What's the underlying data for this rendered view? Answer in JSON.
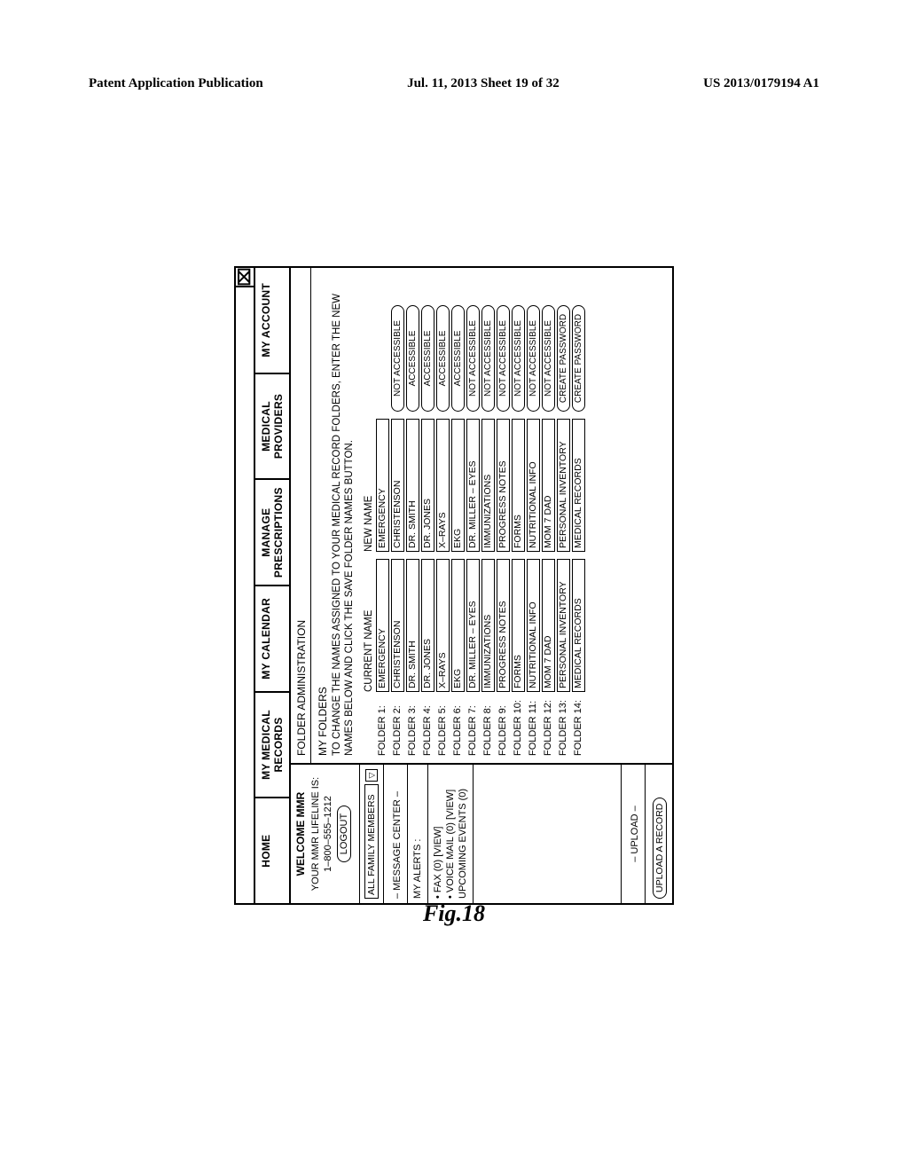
{
  "header": {
    "left": "Patent Application Publication",
    "center": "Jul. 11, 2013  Sheet 19 of 32",
    "right": "US 2013/0179194 A1"
  },
  "figure_label": "Fig.18",
  "window": {
    "close_glyph": "⌧",
    "tabs": [
      "HOME",
      "MY MEDICAL RECORDS",
      "MY CALENDAR",
      "MANAGE PRESCRIPTIONS",
      "MEDICAL PROVIDERS",
      "MY ACCOUNT"
    ]
  },
  "sidebar": {
    "welcome": "WELCOME MMR",
    "lifeline_label": "YOUR MMR LIFELINE IS:",
    "lifeline_value": "1–800–555–1212",
    "logout": "LOGOUT",
    "family_label": "ALL FAMILY MEMBERS",
    "chevron": "▽",
    "message_center": "– MESSAGE CENTER –",
    "my_alerts": "MY ALERTS :",
    "alert_fax": "• FAX (0) [VIEW]",
    "alert_voice": "• VOICE MAIL (0) [VIEW]",
    "upcoming": "UPCOMING EVENTS (0)",
    "upload_head": "– UPLOAD –",
    "upload_btn": "UPLOAD A RECORD"
  },
  "main": {
    "title": "FOLDER ADMINISTRATION",
    "subtitle": "MY FOLDERS",
    "instruction": "TO CHANGE THE NAMES ASSIGNED TO YOUR MEDICAL RECORD FOLDERS, ENTER THE NEW NAMES BELOW AND CLICK THE SAVE FOLDER NAMES BUTTON.",
    "col_current": "CURRENT NAME",
    "col_new": "NEW NAME",
    "folders": [
      {
        "n": "FOLDER 1:",
        "cur": "EMERGENCY",
        "new": "EMERGENCY",
        "acc": ""
      },
      {
        "n": "FOLDER 2:",
        "cur": "CHRISTENSON",
        "new": "CHRISTENSON",
        "acc": "NOT ACCESSIBLE"
      },
      {
        "n": "FOLDER 3:",
        "cur": "DR. SMITH",
        "new": "DR. SMITH",
        "acc": "ACCESSIBLE"
      },
      {
        "n": "FOLDER 4:",
        "cur": "DR. JONES",
        "new": "DR. JONES",
        "acc": "ACCESSIBLE"
      },
      {
        "n": "FOLDER 5:",
        "cur": "X–RAYS",
        "new": "X–RAYS",
        "acc": "ACCESSIBLE"
      },
      {
        "n": "FOLDER 6:",
        "cur": "EKG",
        "new": "EKG",
        "acc": "ACCESSIBLE"
      },
      {
        "n": "FOLDER 7:",
        "cur": "DR. MILLER – EYES",
        "new": "DR. MILLER – EYES",
        "acc": "NOT ACCESSIBLE"
      },
      {
        "n": "FOLDER 8:",
        "cur": "IMMUNIZATIONS",
        "new": "IMMUNIZATIONS",
        "acc": "NOT ACCESSIBLE"
      },
      {
        "n": "FOLDER 9:",
        "cur": "PROGRESS NOTES",
        "new": "PROGRESS NOTES",
        "acc": "NOT ACCESSIBLE"
      },
      {
        "n": "FOLDER 10:",
        "cur": "FORMS",
        "new": "FORMS",
        "acc": "NOT ACCESSIBLE"
      },
      {
        "n": "FOLDER 11:",
        "cur": "NUTRITIONAL INFO",
        "new": "NUTRITIONAL INFO",
        "acc": "NOT ACCESSIBLE"
      },
      {
        "n": "FOLDER 12:",
        "cur": "MOM 7 DAD",
        "new": "MOM 7 DAD",
        "acc": "NOT ACCESSIBLE"
      },
      {
        "n": "FOLDER 13:",
        "cur": "PERSONAL INVENTORY",
        "new": "PERSONAL INVENTORY",
        "acc": "CREATE PASSWORD"
      },
      {
        "n": "FOLDER 14:",
        "cur": "MEDICAL RECORDS",
        "new": "MEDICAL RECORDS",
        "acc": "CREATE PASSWORD"
      }
    ]
  }
}
